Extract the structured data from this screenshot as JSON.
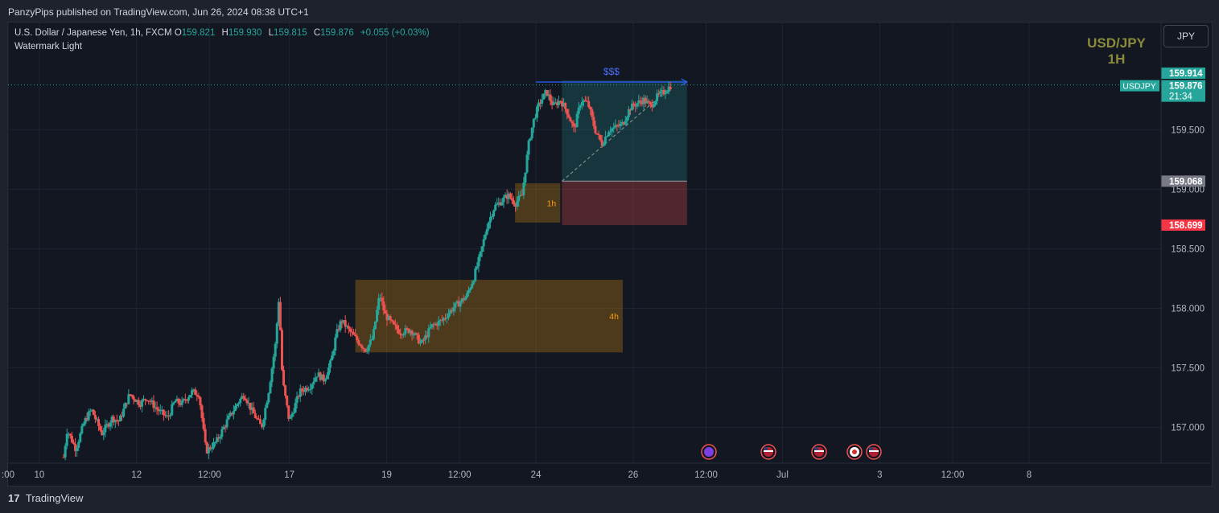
{
  "header": {
    "published": "PanzyPips published on TradingView.com, Jun 26, 2024 08:38 UTC+1"
  },
  "legend": {
    "instrument": "U.S. Dollar / Japanese Yen, 1h, FXCM",
    "o_label": "O",
    "o": "159.821",
    "h_label": "H",
    "h": "159.930",
    "l_label": "L",
    "l": "159.815",
    "c_label": "C",
    "c": "159.876",
    "change": "+0.055 (+0.03%)",
    "indicator": "Watermark Light"
  },
  "watermark": {
    "line1": "USD/JPY",
    "line2": "1H"
  },
  "currency_button": "JPY",
  "footer": {
    "logo": "17",
    "brand": "TradingView"
  },
  "colors": {
    "up": "#26a69a",
    "down": "#ef5350",
    "background": "#131722",
    "grid": "#1f2430",
    "zone": "#f59d0c",
    "target": "#26a69a",
    "stop": "#ef5350",
    "arrow": "#2962ff"
  },
  "chart_data": {
    "type": "candlestick",
    "symbol": "USDJPY",
    "interval": "1h",
    "ylim": [
      156.7,
      160.4
    ],
    "y_ticks": [
      157.0,
      157.5,
      158.0,
      158.5,
      159.0,
      159.5
    ],
    "y_tick_labels": [
      "157.000",
      "157.500",
      "158.000",
      "158.500",
      "159.000",
      "159.500"
    ],
    "x_ticks": [
      {
        "label": ":00",
        "pos": 0.0
      },
      {
        "label": "10",
        "pos": 0.9
      },
      {
        "label": "12",
        "pos": 3.7
      },
      {
        "label": "12:00",
        "pos": 5.8
      },
      {
        "label": "17",
        "pos": 8.1
      },
      {
        "label": "19",
        "pos": 10.9
      },
      {
        "label": "12:00",
        "pos": 13.0
      },
      {
        "label": "24",
        "pos": 15.2
      },
      {
        "label": "26",
        "pos": 18.0
      },
      {
        "label": "12:00",
        "pos": 20.1
      },
      {
        "label": "Jul",
        "pos": 22.3
      },
      {
        "label": "3",
        "pos": 25.1
      },
      {
        "label": "12:00",
        "pos": 27.2
      },
      {
        "label": "8",
        "pos": 29.4
      }
    ],
    "x_range": [
      0,
      33.2
    ],
    "price_path": [
      [
        1.6,
        156.75
      ],
      [
        1.7,
        156.98
      ],
      [
        1.95,
        156.82
      ],
      [
        2.2,
        157.05
      ],
      [
        2.4,
        157.15
      ],
      [
        2.7,
        156.95
      ],
      [
        3.0,
        157.08
      ],
      [
        3.2,
        157.05
      ],
      [
        3.5,
        157.28
      ],
      [
        3.8,
        157.2
      ],
      [
        4.0,
        157.25
      ],
      [
        4.3,
        157.15
      ],
      [
        4.6,
        157.08
      ],
      [
        4.8,
        157.22
      ],
      [
        5.0,
        157.2
      ],
      [
        5.3,
        157.3
      ],
      [
        5.5,
        157.28
      ],
      [
        5.7,
        156.8
      ],
      [
        6.0,
        156.88
      ],
      [
        6.3,
        157.05
      ],
      [
        6.6,
        157.2
      ],
      [
        6.8,
        157.28
      ],
      [
        7.0,
        157.15
      ],
      [
        7.3,
        157.0
      ],
      [
        7.5,
        157.3
      ],
      [
        7.7,
        157.7
      ],
      [
        7.8,
        158.1
      ],
      [
        7.9,
        157.4
      ],
      [
        8.1,
        157.05
      ],
      [
        8.4,
        157.3
      ],
      [
        8.7,
        157.35
      ],
      [
        8.9,
        157.45
      ],
      [
        9.1,
        157.4
      ],
      [
        9.3,
        157.55
      ],
      [
        9.45,
        157.78
      ],
      [
        9.6,
        157.9
      ],
      [
        9.8,
        157.82
      ],
      [
        10.0,
        157.75
      ],
      [
        10.3,
        157.65
      ],
      [
        10.5,
        157.75
      ],
      [
        10.7,
        158.12
      ],
      [
        10.85,
        157.95
      ],
      [
        11.1,
        157.85
      ],
      [
        11.3,
        157.8
      ],
      [
        11.6,
        157.82
      ],
      [
        11.9,
        157.7
      ],
      [
        12.2,
        157.85
      ],
      [
        12.5,
        157.9
      ],
      [
        12.8,
        158.0
      ],
      [
        13.0,
        158.05
      ],
      [
        13.2,
        158.1
      ],
      [
        13.4,
        158.25
      ],
      [
        13.6,
        158.45
      ],
      [
        13.8,
        158.7
      ],
      [
        14.0,
        158.85
      ],
      [
        14.2,
        158.9
      ],
      [
        14.4,
        158.95
      ],
      [
        14.6,
        158.88
      ],
      [
        14.8,
        158.95
      ],
      [
        15.0,
        159.4
      ],
      [
        15.15,
        159.6
      ],
      [
        15.3,
        159.72
      ],
      [
        15.5,
        159.82
      ],
      [
        15.7,
        159.7
      ],
      [
        15.9,
        159.75
      ],
      [
        16.1,
        159.65
      ],
      [
        16.3,
        159.5
      ],
      [
        16.5,
        159.75
      ],
      [
        16.7,
        159.72
      ],
      [
        16.9,
        159.5
      ],
      [
        17.1,
        159.38
      ],
      [
        17.3,
        159.5
      ],
      [
        17.5,
        159.52
      ],
      [
        17.7,
        159.55
      ],
      [
        17.9,
        159.68
      ],
      [
        18.1,
        159.72
      ],
      [
        18.3,
        159.75
      ],
      [
        18.5,
        159.7
      ],
      [
        18.7,
        159.78
      ],
      [
        18.9,
        159.82
      ],
      [
        19.1,
        159.876
      ]
    ],
    "zones": [
      {
        "label": "4h",
        "x": [
          10.0,
          17.7
        ],
        "y": [
          157.63,
          158.24
        ]
      },
      {
        "label": "1h",
        "x": [
          14.6,
          15.9
        ],
        "y": [
          158.72,
          159.05
        ]
      }
    ],
    "position": {
      "entry": 159.068,
      "target": 159.914,
      "stop": 158.699,
      "x": [
        15.95,
        19.55
      ],
      "label": "$$$"
    },
    "price_labels": [
      {
        "text": "159.914",
        "value": 159.914,
        "kind": "target"
      },
      {
        "text": "159.876",
        "value": 159.876,
        "kind": "last",
        "symbol": "USDJPY",
        "countdown": "21:34"
      },
      {
        "text": "159.068",
        "value": 159.068,
        "kind": "entry"
      },
      {
        "text": "158.699",
        "value": 158.699,
        "kind": "stop"
      }
    ]
  }
}
